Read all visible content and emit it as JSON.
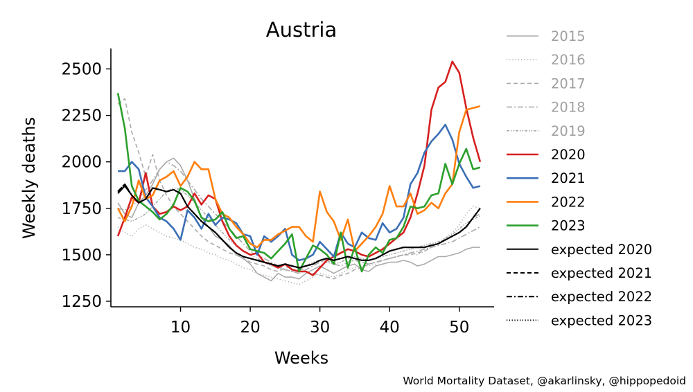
{
  "chart_data": {
    "type": "line",
    "title": "Austria",
    "xlabel": "Weeks",
    "ylabel": "Weekly deaths",
    "xlim": [
      0,
      55
    ],
    "ylim": [
      1220,
      2610
    ],
    "xticks": [
      10,
      20,
      30,
      40,
      50
    ],
    "yticks": [
      1250,
      1500,
      1750,
      2000,
      2250,
      2500
    ],
    "grid": false,
    "legend_position": "right",
    "credit": "World Mortality Dataset, @akarlinsky, @hippopedoid",
    "series": [
      {
        "name": "2015",
        "color": "#aaaaaa",
        "dash": "solid",
        "width": 1.6,
        "values": [
          1780,
          1720,
          1700,
          1780,
          1820,
          1880,
          1960,
          2000,
          2020,
          1980,
          1900,
          1800,
          1700,
          1650,
          1600,
          1580,
          1550,
          1500,
          1480,
          1450,
          1400,
          1380,
          1360,
          1400,
          1380,
          1380,
          1370,
          1400,
          1420,
          1440,
          1420,
          1400,
          1420,
          1440,
          1450,
          1420,
          1410,
          1440,
          1450,
          1460,
          1460,
          1470,
          1460,
          1440,
          1450,
          1470,
          1490,
          1490,
          1500,
          1510,
          1530,
          1540,
          1540
        ]
      },
      {
        "name": "2016",
        "color": "#aaaaaa",
        "dash": "1.2,3",
        "width": 1.6,
        "values": [
          1650,
          1620,
          1600,
          1640,
          1660,
          1640,
          1620,
          1600,
          1590,
          1580,
          1560,
          1540,
          1530,
          1510,
          1500,
          1480,
          1470,
          1450,
          1430,
          1420,
          1400,
          1390,
          1380,
          1370,
          1360,
          1350,
          1340,
          1360,
          1380,
          1400,
          1390,
          1380,
          1400,
          1420,
          1430,
          1440,
          1440,
          1450,
          1470,
          1480,
          1490,
          1500,
          1510,
          1500,
          1520,
          1540,
          1560,
          1590,
          1620,
          1660,
          1720,
          1760,
          1750
        ]
      },
      {
        "name": "2017",
        "color": "#aaaaaa",
        "dash": "6,4",
        "width": 1.6,
        "values": [
          2310,
          2340,
          2160,
          2050,
          1920,
          2040,
          1900,
          1820,
          1760,
          1720,
          1680,
          1640,
          1600,
          1570,
          1550,
          1530,
          1510,
          1500,
          1480,
          1460,
          1450,
          1440,
          1420,
          1410,
          1430,
          1440,
          1430,
          1410,
          1400,
          1390,
          1380,
          1370,
          1390,
          1400,
          1420,
          1430,
          1450,
          1460,
          1470,
          1480,
          1490,
          1500,
          1500,
          1510,
          1520,
          1540,
          1560,
          1580,
          1600,
          1620,
          1650,
          1700,
          1720
        ]
      },
      {
        "name": "2018",
        "color": "#aaaaaa",
        "dash": "8,3,2,3",
        "width": 1.6,
        "values": [
          1750,
          1740,
          1760,
          1800,
          1850,
          1900,
          1960,
          2000,
          1980,
          1950,
          1900,
          1850,
          1800,
          1760,
          1720,
          1680,
          1640,
          1600,
          1560,
          1520,
          1500,
          1480,
          1460,
          1440,
          1420,
          1410,
          1400,
          1420,
          1440,
          1460,
          1470,
          1450,
          1440,
          1460,
          1470,
          1460,
          1450,
          1460,
          1470,
          1480,
          1490,
          1500,
          1510,
          1520,
          1530,
          1540,
          1550,
          1560,
          1570,
          1590,
          1610,
          1630,
          1650
        ]
      },
      {
        "name": "2019",
        "color": "#aaaaaa",
        "dash": "4,2,1.5,2,1.5,2",
        "width": 1.6,
        "values": [
          1700,
          1690,
          1680,
          1700,
          1720,
          1760,
          1800,
          1840,
          1860,
          1850,
          1820,
          1780,
          1740,
          1700,
          1660,
          1620,
          1580,
          1550,
          1520,
          1500,
          1480,
          1460,
          1440,
          1430,
          1420,
          1410,
          1420,
          1440,
          1460,
          1470,
          1460,
          1450,
          1460,
          1480,
          1490,
          1480,
          1470,
          1480,
          1490,
          1500,
          1510,
          1520,
          1530,
          1540,
          1550,
          1560,
          1570,
          1590,
          1610,
          1640,
          1670,
          1690,
          1710
        ]
      },
      {
        "name": "2020",
        "color": "#d62020",
        "dash": "solid",
        "width": 2.6,
        "values": [
          1600,
          1700,
          1810,
          1780,
          1940,
          1760,
          1720,
          1730,
          1760,
          1740,
          1760,
          1830,
          1770,
          1820,
          1800,
          1680,
          1600,
          1550,
          1520,
          1500,
          1510,
          1460,
          1450,
          1430,
          1450,
          1420,
          1410,
          1410,
          1390,
          1430,
          1470,
          1490,
          1510,
          1530,
          1520,
          1500,
          1490,
          1510,
          1530,
          1560,
          1590,
          1620,
          1700,
          1830,
          1980,
          2280,
          2400,
          2430,
          2540,
          2480,
          2290,
          2130,
          2000
        ]
      },
      {
        "name": "2021",
        "color": "#3b6fb6",
        "dash": "solid",
        "width": 2.6,
        "values": [
          1950,
          1950,
          2000,
          1960,
          1810,
          1760,
          1700,
          1680,
          1640,
          1580,
          1740,
          1700,
          1640,
          1720,
          1660,
          1700,
          1690,
          1670,
          1610,
          1600,
          1500,
          1600,
          1570,
          1600,
          1640,
          1500,
          1470,
          1480,
          1500,
          1570,
          1530,
          1490,
          1620,
          1560,
          1540,
          1620,
          1590,
          1580,
          1670,
          1620,
          1640,
          1700,
          1880,
          1940,
          2050,
          2110,
          2150,
          2200,
          2120,
          1990,
          1920,
          1860,
          1870
        ]
      },
      {
        "name": "2022",
        "color": "#ff7f0e",
        "dash": "solid",
        "width": 2.6,
        "values": [
          1750,
          1680,
          1760,
          1900,
          1800,
          1820,
          1900,
          1920,
          1950,
          1870,
          1920,
          2000,
          1960,
          1960,
          1800,
          1720,
          1700,
          1650,
          1610,
          1560,
          1540,
          1580,
          1580,
          1610,
          1630,
          1650,
          1650,
          1600,
          1570,
          1840,
          1730,
          1680,
          1580,
          1690,
          1520,
          1560,
          1600,
          1650,
          1720,
          1870,
          1760,
          1760,
          1830,
          1720,
          1740,
          1780,
          1750,
          1830,
          1880,
          2160,
          2280,
          2290,
          2300
        ]
      },
      {
        "name": "2023",
        "color": "#2ca02c",
        "dash": "solid",
        "width": 2.6,
        "values": [
          2370,
          2180,
          1870,
          1790,
          1760,
          1730,
          1690,
          1720,
          1770,
          1860,
          1840,
          1790,
          1700,
          1680,
          1690,
          1730,
          1640,
          1590,
          1600,
          1530,
          1520,
          1510,
          1480,
          1520,
          1560,
          1610,
          1410,
          1480,
          1550,
          1530,
          1500,
          1450,
          1620,
          1430,
          1540,
          1410,
          1500,
          1540,
          1510,
          1580,
          1590,
          1650,
          1760,
          1750,
          1760,
          1820,
          1830,
          1990,
          1880,
          1990,
          2070,
          1960,
          1970
        ]
      },
      {
        "name": "expected 2020",
        "color": "#000000",
        "dash": "solid",
        "width": 2.0,
        "values": [
          1830,
          1870,
          1820,
          1780,
          1800,
          1860,
          1850,
          1840,
          1850,
          1830,
          1760,
          1720,
          1680,
          1650,
          1620,
          1580,
          1540,
          1510,
          1490,
          1480,
          1470,
          1460,
          1450,
          1440,
          1450,
          1440,
          1430,
          1440,
          1450,
          1470,
          1480,
          1470,
          1480,
          1490,
          1480,
          1470,
          1470,
          1480,
          1500,
          1520,
          1530,
          1540,
          1540,
          1540,
          1540,
          1550,
          1560,
          1580,
          1600,
          1620,
          1650,
          1700,
          1750
        ]
      },
      {
        "name": "expected 2021",
        "color": "#000000",
        "dash": "6,4",
        "width": 2.0,
        "values": [
          1840,
          1880,
          1820,
          1780,
          1800,
          1860,
          1850,
          1840,
          1850,
          1830,
          1760,
          1720,
          1680,
          1650,
          1620,
          1580,
          1540,
          1510,
          1490,
          1480,
          1470,
          1460,
          1450,
          1440,
          1450,
          1440,
          1430,
          1440,
          1450,
          1470,
          1480,
          1470,
          1480,
          1490,
          1480,
          1470,
          1470,
          1480,
          1500,
          1520,
          1530,
          1540,
          1540,
          1540,
          1540,
          1550,
          1560,
          1580,
          1600,
          1620,
          1650,
          1700,
          1750
        ]
      },
      {
        "name": "expected 2022",
        "color": "#000000",
        "dash": "8,3,2,3",
        "width": 2.0,
        "values": [
          1840,
          1880,
          1820,
          1780,
          1800,
          1860,
          1850,
          1840,
          1850,
          1830,
          1760,
          1720,
          1680,
          1650,
          1620,
          1580,
          1540,
          1510,
          1490,
          1480,
          1470,
          1460,
          1450,
          1440,
          1450,
          1440,
          1430,
          1440,
          1450,
          1470,
          1480,
          1470,
          1480,
          1490,
          1480,
          1470,
          1470,
          1480,
          1500,
          1520,
          1530,
          1540,
          1540,
          1540,
          1540,
          1550,
          1560,
          1580,
          1600,
          1620,
          1650,
          1700,
          1750
        ]
      },
      {
        "name": "expected 2023",
        "color": "#000000",
        "dash": "1.2,2.6",
        "width": 2.0,
        "values": [
          1840,
          1880,
          1820,
          1780,
          1800,
          1860,
          1850,
          1840,
          1850,
          1830,
          1760,
          1720,
          1680,
          1650,
          1620,
          1580,
          1540,
          1510,
          1490,
          1480,
          1470,
          1460,
          1450,
          1440,
          1450,
          1440,
          1430,
          1440,
          1450,
          1470,
          1480,
          1470,
          1480,
          1490,
          1480,
          1470,
          1470,
          1480,
          1500,
          1520,
          1530,
          1540,
          1540,
          1540,
          1540,
          1550,
          1560,
          1580,
          1600,
          1620,
          1650,
          1700,
          1750
        ]
      }
    ]
  }
}
